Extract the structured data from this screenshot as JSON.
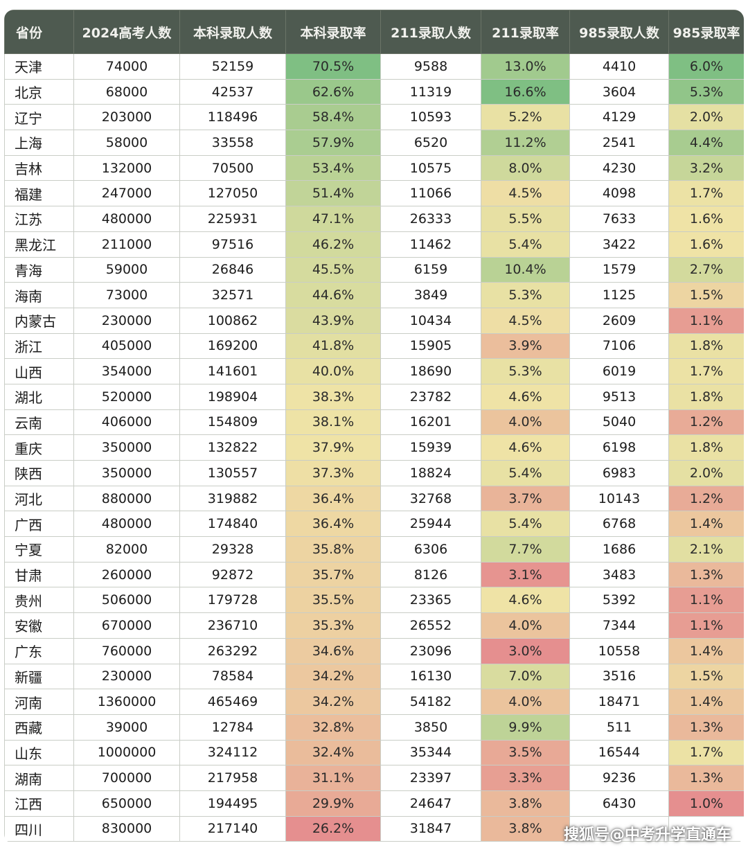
{
  "chart_data": {
    "type": "table",
    "columns": [
      "省份",
      "2024高考人数",
      "本科录取人数",
      "本科录取率",
      "211录取人数",
      "211录取率",
      "985录取人数",
      "985录取率"
    ],
    "rows": [
      [
        "天津",
        "74000",
        "52159",
        "70.5%",
        "9588",
        "13.0%",
        "4410",
        "6.0%"
      ],
      [
        "北京",
        "68000",
        "42537",
        "62.6%",
        "11319",
        "16.6%",
        "3604",
        "5.3%"
      ],
      [
        "辽宁",
        "203000",
        "118496",
        "58.4%",
        "10593",
        "5.2%",
        "4129",
        "2.0%"
      ],
      [
        "上海",
        "58000",
        "33558",
        "57.9%",
        "6520",
        "11.2%",
        "2541",
        "4.4%"
      ],
      [
        "吉林",
        "132000",
        "70500",
        "53.4%",
        "10575",
        "8.0%",
        "4230",
        "3.2%"
      ],
      [
        "福建",
        "247000",
        "127050",
        "51.4%",
        "11066",
        "4.5%",
        "4098",
        "1.7%"
      ],
      [
        "江苏",
        "480000",
        "225931",
        "47.1%",
        "26333",
        "5.5%",
        "7633",
        "1.6%"
      ],
      [
        "黑龙江",
        "211000",
        "97516",
        "46.2%",
        "11462",
        "5.4%",
        "3422",
        "1.6%"
      ],
      [
        "青海",
        "59000",
        "26846",
        "45.5%",
        "6159",
        "10.4%",
        "1579",
        "2.7%"
      ],
      [
        "海南",
        "73000",
        "32571",
        "44.6%",
        "3849",
        "5.3%",
        "1125",
        "1.5%"
      ],
      [
        "内蒙古",
        "230000",
        "100862",
        "43.9%",
        "10434",
        "4.5%",
        "2609",
        "1.1%"
      ],
      [
        "浙江",
        "405000",
        "169200",
        "41.8%",
        "15905",
        "3.9%",
        "7106",
        "1.8%"
      ],
      [
        "山西",
        "354000",
        "141601",
        "40.0%",
        "18690",
        "5.3%",
        "6019",
        "1.7%"
      ],
      [
        "湖北",
        "520000",
        "198904",
        "38.3%",
        "23782",
        "4.6%",
        "9513",
        "1.8%"
      ],
      [
        "云南",
        "406000",
        "154809",
        "38.1%",
        "16201",
        "4.0%",
        "5040",
        "1.2%"
      ],
      [
        "重庆",
        "350000",
        "132822",
        "37.9%",
        "15939",
        "4.6%",
        "6198",
        "1.8%"
      ],
      [
        "陕西",
        "350000",
        "130557",
        "37.3%",
        "18824",
        "5.4%",
        "6983",
        "2.0%"
      ],
      [
        "河北",
        "880000",
        "319882",
        "36.4%",
        "32768",
        "3.7%",
        "10143",
        "1.2%"
      ],
      [
        "广西",
        "480000",
        "174840",
        "36.4%",
        "25944",
        "5.4%",
        "6768",
        "1.4%"
      ],
      [
        "宁夏",
        "82000",
        "29328",
        "35.8%",
        "6306",
        "7.7%",
        "1686",
        "2.1%"
      ],
      [
        "甘肃",
        "260000",
        "92872",
        "35.7%",
        "8126",
        "3.1%",
        "3483",
        "1.3%"
      ],
      [
        "贵州",
        "506000",
        "179728",
        "35.5%",
        "23365",
        "4.6%",
        "5392",
        "1.1%"
      ],
      [
        "安徽",
        "670000",
        "236710",
        "35.3%",
        "26552",
        "4.0%",
        "7344",
        "1.1%"
      ],
      [
        "广东",
        "760000",
        "263292",
        "34.6%",
        "23096",
        "3.0%",
        "10558",
        "1.4%"
      ],
      [
        "新疆",
        "230000",
        "78584",
        "34.2%",
        "16130",
        "7.0%",
        "3516",
        "1.5%"
      ],
      [
        "河南",
        "1360000",
        "465469",
        "34.2%",
        "54182",
        "4.0%",
        "18471",
        "1.4%"
      ],
      [
        "西藏",
        "39000",
        "12784",
        "32.8%",
        "3850",
        "9.9%",
        "511",
        "1.3%"
      ],
      [
        "山东",
        "1000000",
        "324112",
        "32.4%",
        "35344",
        "3.5%",
        "16544",
        "1.7%"
      ],
      [
        "湖南",
        "700000",
        "217958",
        "31.1%",
        "23397",
        "3.3%",
        "9236",
        "1.3%"
      ],
      [
        "江西",
        "650000",
        "194495",
        "29.9%",
        "24647",
        "3.8%",
        "6430",
        "1.0%"
      ],
      [
        "四川",
        "830000",
        "217140",
        "26.2%",
        "31847",
        "3.8%",
        "",
        ""
      ]
    ],
    "heatmap_columns": [
      3,
      5,
      7
    ],
    "heatmap_colors": {
      "low": "#e58f8f",
      "mid": "#efe3a6",
      "high": "#7fbf83"
    }
  },
  "watermark": "搜狐号@中考升学直通车"
}
